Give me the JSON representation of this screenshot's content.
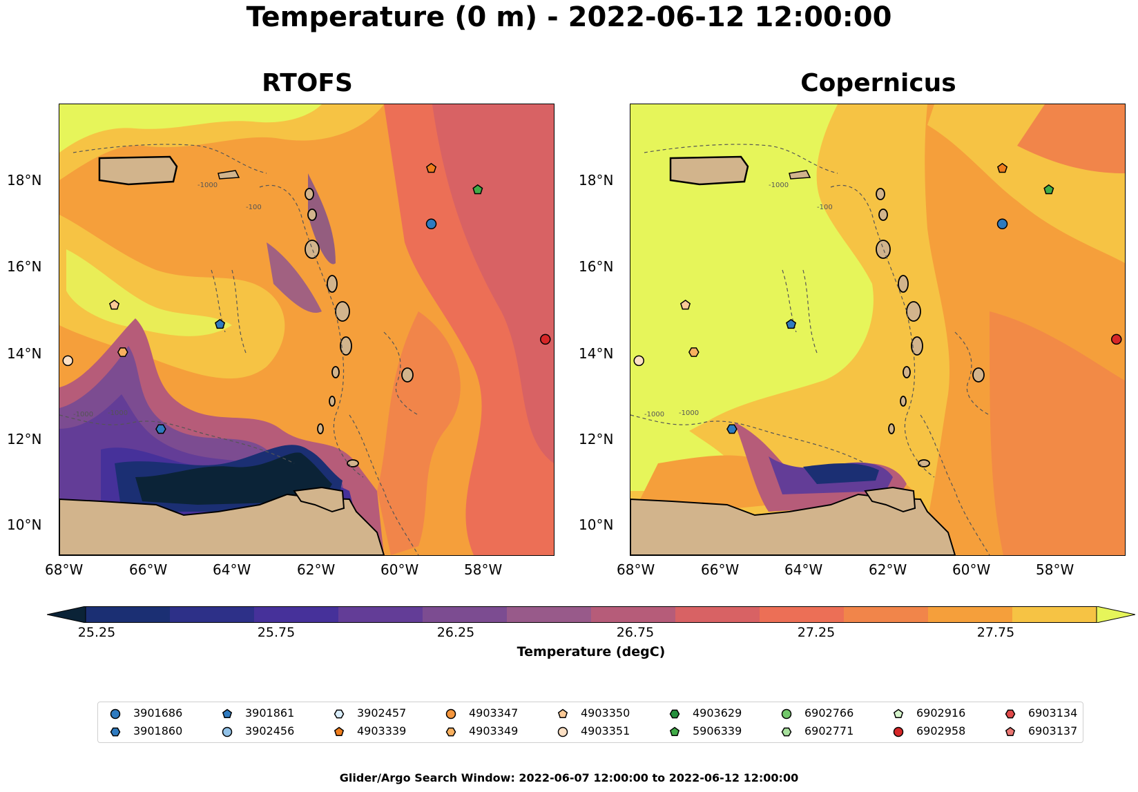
{
  "title": "Temperature (0 m) - 2022-06-12 12:00:00",
  "panels": [
    {
      "title": "RTOFS"
    },
    {
      "title": "Copernicus"
    }
  ],
  "axes": {
    "x_ticks": [
      "68°W",
      "66°W",
      "64°W",
      "62°W",
      "60°W",
      "58°W"
    ],
    "y_ticks": [
      "18°N",
      "16°N",
      "14°N",
      "12°N",
      "10°N"
    ],
    "bathymetry_labels": [
      "-1000",
      "-100"
    ]
  },
  "colorbar": {
    "label": "Temperature (degC)",
    "ticks": [
      "25.25",
      "25.75",
      "26.25",
      "26.75",
      "27.25",
      "27.75"
    ],
    "min": 25.0,
    "max": 28.0,
    "step": 0.25,
    "extend": "both",
    "colors": [
      "#0b2337",
      "#1b2f73",
      "#2d3088",
      "#46319a",
      "#633d97",
      "#7c4c91",
      "#985a8a",
      "#b65c79",
      "#d86264",
      "#ec6f56",
      "#f1854a",
      "#f59f3b",
      "#f6c344",
      "#e6f55a"
    ]
  },
  "floats": [
    {
      "id": "3901686",
      "marker": "circle",
      "color": "#2f7bc0"
    },
    {
      "id": "3901860",
      "marker": "hexagon",
      "color": "#2f7bc0"
    },
    {
      "id": "3901861",
      "marker": "pentagon",
      "color": "#2f7bc0"
    },
    {
      "id": "3902456",
      "marker": "circle",
      "color": "#92c2e8"
    },
    {
      "id": "3902457",
      "marker": "hexagon",
      "color": "#daeefb"
    },
    {
      "id": "4903339",
      "marker": "pentagon",
      "color": "#ef7d1c"
    },
    {
      "id": "4903347",
      "marker": "circle",
      "color": "#f5963d"
    },
    {
      "id": "4903349",
      "marker": "hexagon",
      "color": "#f8b05f"
    },
    {
      "id": "4903350",
      "marker": "pentagon",
      "color": "#fbc996"
    },
    {
      "id": "4903351",
      "marker": "circle",
      "color": "#fde0c4"
    },
    {
      "id": "4903629",
      "marker": "hexagon",
      "color": "#248f3c"
    },
    {
      "id": "5906339",
      "marker": "pentagon",
      "color": "#41ab48"
    },
    {
      "id": "6902766",
      "marker": "circle",
      "color": "#73c86b"
    },
    {
      "id": "6902771",
      "marker": "hexagon",
      "color": "#a7e09d"
    },
    {
      "id": "6902916",
      "marker": "pentagon",
      "color": "#d6f5cc"
    },
    {
      "id": "6902958",
      "marker": "circle",
      "color": "#d62728"
    },
    {
      "id": "6903134",
      "marker": "hexagon",
      "color": "#e04a4a"
    },
    {
      "id": "6903137",
      "marker": "pentagon",
      "color": "#ea7672"
    }
  ],
  "map_markers": [
    {
      "lon": -59.4,
      "lat": 18.3,
      "marker": "pentagon",
      "color": "#ef7d1c"
    },
    {
      "lon": -58.3,
      "lat": 17.8,
      "marker": "pentagon",
      "color": "#41ab48"
    },
    {
      "lon": -59.4,
      "lat": 17.0,
      "marker": "circle",
      "color": "#2f7bc0"
    },
    {
      "lon": -66.9,
      "lat": 15.1,
      "marker": "pentagon",
      "color": "#fbc996"
    },
    {
      "lon": -64.4,
      "lat": 14.65,
      "marker": "pentagon",
      "color": "#2f7bc0"
    },
    {
      "lon": -56.7,
      "lat": 14.3,
      "marker": "circle",
      "color": "#d62728"
    },
    {
      "lon": -66.7,
      "lat": 14.0,
      "marker": "hexagon",
      "color": "#f8b05f"
    },
    {
      "lon": -68.0,
      "lat": 13.8,
      "marker": "circle",
      "color": "#fde0c4"
    },
    {
      "lon": -65.8,
      "lat": 12.2,
      "marker": "hexagon",
      "color": "#2f7bc0"
    }
  ],
  "footer": "Glider/Argo Search Window: 2022-06-07 12:00:00 to 2022-06-12 12:00:00"
}
